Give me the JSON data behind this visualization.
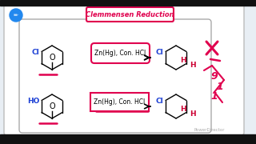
{
  "title": "Clemmensen Reduction",
  "title_color": "#e0004e",
  "title_box_color": "#e0004e",
  "bg_color": "#e8eef4",
  "panel_bg": "#ffffff",
  "reaction1_reagent": "Zn(Hg), Con. HCl",
  "reaction2_reagent": "Zn(Hg), Con. HCl",
  "reactant1_sub_color": "#1a3ed4",
  "reactant2_sub_color": "#1a3ed4",
  "product_sub_color": "#1a3ed4",
  "product_H_color": "#cc0033",
  "reagent_box1_color": "#e0004e",
  "reagent_box2_color": "#e0004e",
  "outer_border_color": "#bbbbbb",
  "inner_border_color": "#aaaaaa",
  "powerdir_color": "#999999",
  "black_bar_color": "#111111",
  "blue_circle_color": "#2288ee",
  "annotation_color": "#e0004e"
}
